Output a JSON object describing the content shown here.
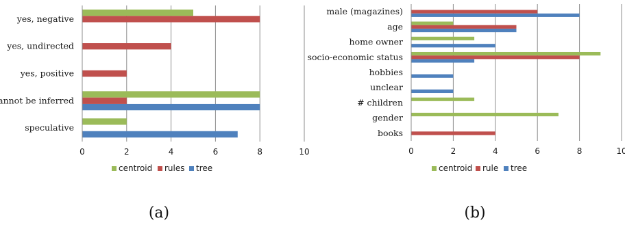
{
  "colors": {
    "centroid": "#9bbb59",
    "rules": "#c0504d",
    "tree": "#4f81bd"
  },
  "chart_data": [
    {
      "type": "bar",
      "orientation": "horizontal",
      "caption": "(a)",
      "categories": [
        "yes, negative",
        "yes, undirected",
        "yes, positive",
        "cannot be inferred",
        "speculative"
      ],
      "series": [
        {
          "name": "centroid",
          "values": [
            5,
            0,
            0,
            8,
            2
          ]
        },
        {
          "name": "rules",
          "values": [
            8,
            4,
            2,
            2,
            0
          ]
        },
        {
          "name": "tree",
          "values": [
            0,
            0,
            0,
            8,
            7
          ]
        }
      ],
      "xlim": [
        0,
        10
      ],
      "ticks": [
        "0",
        "2",
        "4",
        "6",
        "8",
        "10"
      ],
      "grid": true,
      "legend": "bottom"
    },
    {
      "type": "bar",
      "orientation": "horizontal",
      "caption": "(b)",
      "categories": [
        "male (magazines)",
        "age",
        "home owner",
        "socio-economic status",
        "hobbies",
        "unclear",
        "# children",
        "gender",
        "books"
      ],
      "series": [
        {
          "name": "centroid",
          "values": [
            0,
            2,
            3,
            9,
            0,
            0,
            3,
            7,
            0
          ]
        },
        {
          "name": "rule",
          "values": [
            6,
            5,
            0,
            8,
            0,
            0,
            0,
            0,
            4
          ]
        },
        {
          "name": "tree",
          "values": [
            8,
            5,
            4,
            3,
            2,
            2,
            0,
            0,
            0
          ]
        }
      ],
      "xlim": [
        0,
        10
      ],
      "ticks": [
        "0",
        "2",
        "4",
        "6",
        "8",
        "10"
      ],
      "grid": true,
      "legend": "bottom"
    }
  ]
}
